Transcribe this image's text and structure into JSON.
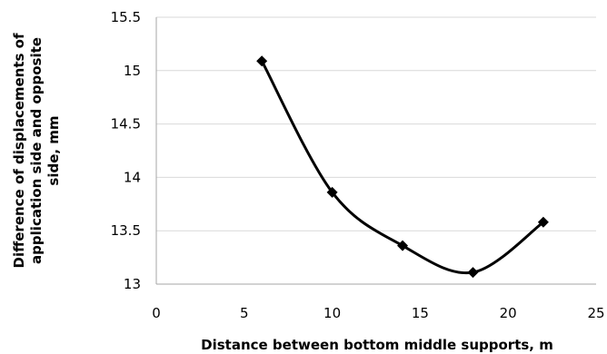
{
  "chart_data": {
    "type": "line",
    "title": "",
    "xlabel": "Distance between bottom middle supports, m",
    "ylabel_lines": [
      "Difference of displacements of",
      "application side and  opposite",
      "side, mm"
    ],
    "xlim": [
      0,
      25
    ],
    "ylim": [
      13,
      15.5
    ],
    "x_ticks": [
      "0",
      "5",
      "10",
      "15",
      "20",
      "25"
    ],
    "y_ticks": [
      "13",
      "13.5",
      "14",
      "14.5",
      "15",
      "15.5"
    ],
    "grid": "horizontal",
    "smooth": true,
    "marker": "diamond",
    "line_color": "#000000",
    "gridline_color": "#d9d9d9",
    "axis_color": "#a6a6a6",
    "series": [
      {
        "x": [
          6,
          10,
          14,
          18,
          22
        ],
        "y": [
          15.09,
          13.86,
          13.36,
          13.11,
          13.58
        ]
      }
    ]
  }
}
